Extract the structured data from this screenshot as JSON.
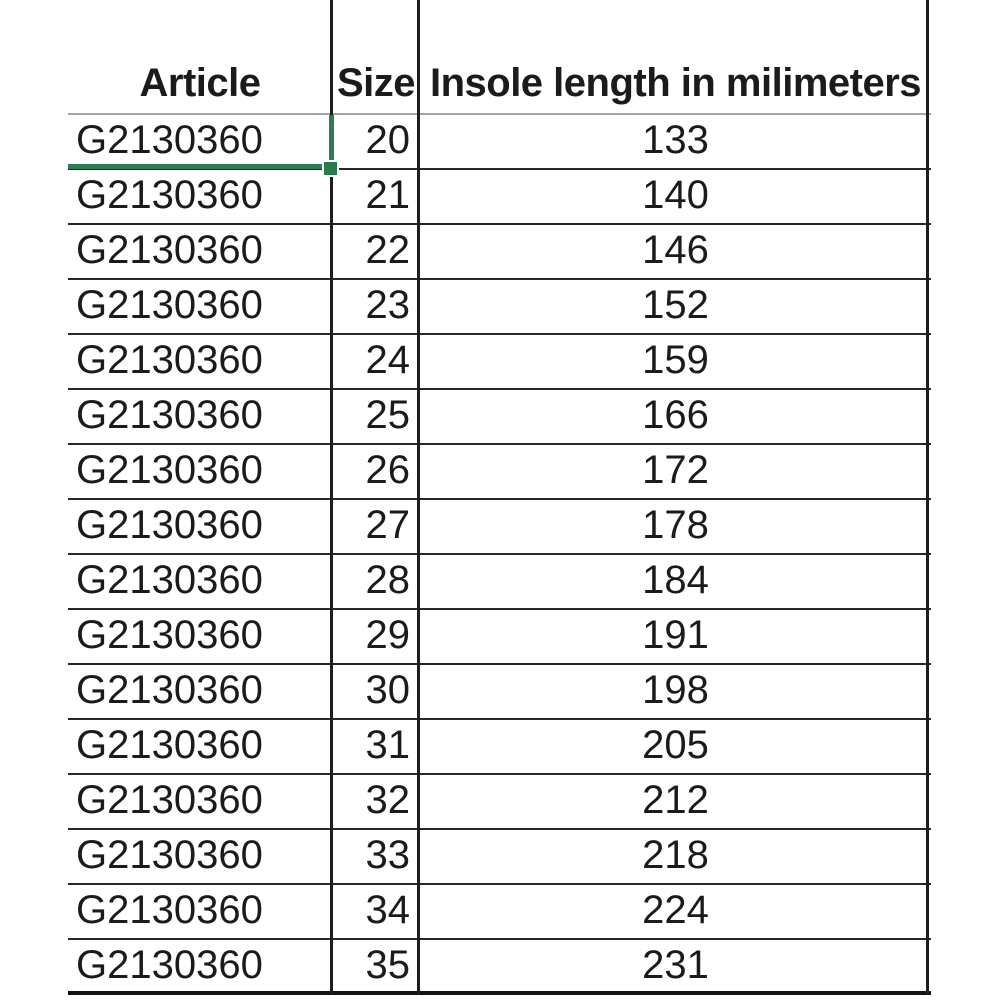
{
  "table": {
    "columns": [
      {
        "id": "article",
        "label": "Article"
      },
      {
        "id": "size",
        "label": "Size"
      },
      {
        "id": "insole",
        "label": "Insole length in milimeters"
      }
    ],
    "rows": [
      {
        "article": "G2130360",
        "size": "20",
        "insole": "133"
      },
      {
        "article": "G2130360",
        "size": "21",
        "insole": "140"
      },
      {
        "article": "G2130360",
        "size": "22",
        "insole": "146"
      },
      {
        "article": "G2130360",
        "size": "23",
        "insole": "152"
      },
      {
        "article": "G2130360",
        "size": "24",
        "insole": "159"
      },
      {
        "article": "G2130360",
        "size": "25",
        "insole": "166"
      },
      {
        "article": "G2130360",
        "size": "26",
        "insole": "172"
      },
      {
        "article": "G2130360",
        "size": "27",
        "insole": "178"
      },
      {
        "article": "G2130360",
        "size": "28",
        "insole": "184"
      },
      {
        "article": "G2130360",
        "size": "29",
        "insole": "191"
      },
      {
        "article": "G2130360",
        "size": "30",
        "insole": "198"
      },
      {
        "article": "G2130360",
        "size": "31",
        "insole": "205"
      },
      {
        "article": "G2130360",
        "size": "32",
        "insole": "212"
      },
      {
        "article": "G2130360",
        "size": "33",
        "insole": "218"
      },
      {
        "article": "G2130360",
        "size": "34",
        "insole": "224"
      },
      {
        "article": "G2130360",
        "size": "35",
        "insole": "231"
      }
    ],
    "selection": {
      "row_index": 0,
      "column": "article",
      "style": "bottom-right-border-with-fill-handle"
    }
  },
  "colors": {
    "selection_green": "#2e7c4f",
    "grid_dark": "#1e1e1e",
    "row_line": "#272727",
    "header_underline": "#a4a4a4",
    "text": "#1b1b1b",
    "background": "#ffffff"
  }
}
